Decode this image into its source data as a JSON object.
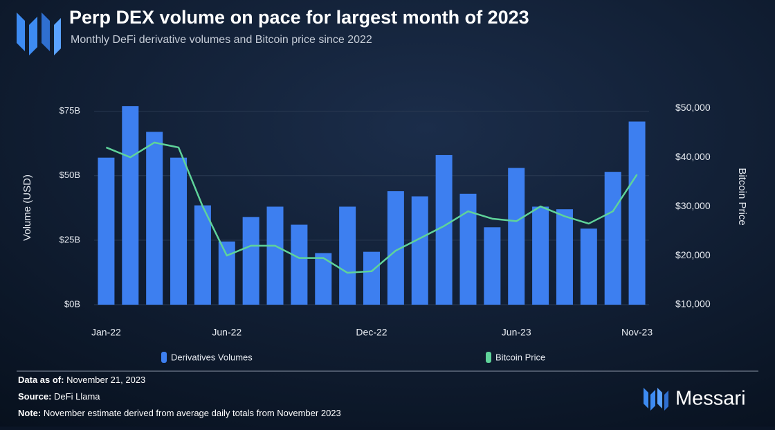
{
  "chart_data": {
    "type": "bar_line",
    "title": "Perp DEX volume on pace for largest month of 2023",
    "subtitle": "Monthly DeFi derivative volumes and Bitcoin price since 2022",
    "y_label": "Volume (USD)",
    "y2_label": "Bitcoin Price",
    "categories": [
      "Jan-22",
      null,
      null,
      null,
      null,
      "Jun-22",
      null,
      null,
      null,
      null,
      null,
      "Dec-22",
      null,
      null,
      null,
      null,
      null,
      "Jun-23",
      null,
      null,
      null,
      null,
      "Nov-23"
    ],
    "series": [
      {
        "name": "Derivatives Volumes",
        "color": "#3d7ff0",
        "kind": "bar",
        "values": [
          57,
          77,
          67,
          57,
          38.5,
          24.5,
          34,
          38,
          31,
          20,
          38,
          20.5,
          44,
          42,
          58,
          43,
          30,
          53,
          38,
          37,
          29.5,
          51.5,
          71
        ]
      },
      {
        "name": "Bitcoin Price",
        "color": "#5fd39a",
        "kind": "line",
        "axis": "y2",
        "values": [
          42000,
          40000,
          43000,
          42000,
          30000,
          20000,
          22000,
          22000,
          19500,
          19500,
          16500,
          16800,
          21000,
          23500,
          26000,
          29000,
          27500,
          27000,
          30000,
          28000,
          26500,
          29000,
          36500
        ]
      }
    ],
    "ylim": [
      0,
      80
    ],
    "yticks": [
      {
        "value": 0,
        "label": "$0B"
      },
      {
        "value": 25,
        "label": "$25B"
      },
      {
        "value": 50,
        "label": "$50B"
      },
      {
        "value": 75,
        "label": "$75B"
      }
    ],
    "y2lim": [
      10000,
      52000
    ],
    "y2ticks": [
      {
        "value": 10000,
        "label": "$10,000"
      },
      {
        "value": 20000,
        "label": "$20,000"
      },
      {
        "value": 30000,
        "label": "$30,000"
      },
      {
        "value": 40000,
        "label": "$40,000"
      },
      {
        "value": 50000,
        "label": "$50,000"
      }
    ],
    "grid": true
  },
  "footer": {
    "date_label": "Data as of:",
    "date": "November 21, 2023",
    "source_label": "Source:",
    "source": "DeFi Llama",
    "note_label": "Note:",
    "note": "November estimate derived from average daily totals from November 2023"
  },
  "brand": "Messari"
}
